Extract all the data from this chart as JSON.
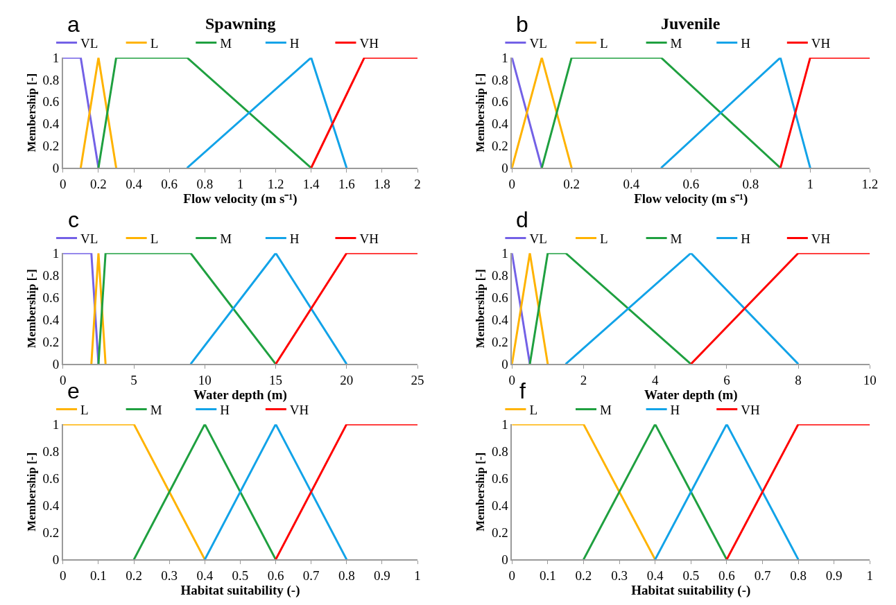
{
  "chart_data": [
    {
      "type": "line",
      "title": "Spawning",
      "annotations": [
        "a"
      ],
      "xlabel": "Flow velocity (m s⁻¹)",
      "ylabel": "Membership [-]",
      "xlim": [
        0,
        2
      ],
      "xticks": [
        0,
        0.2,
        0.4,
        0.6,
        0.8,
        1,
        1.2,
        1.4,
        1.6,
        1.8,
        2
      ],
      "ylim": [
        0,
        1
      ],
      "yticks": [
        0,
        0.2,
        0.4,
        0.6,
        0.8,
        1
      ],
      "legend": "top",
      "marker": "none",
      "series": [
        {
          "name": "VL",
          "color": "#7361e6",
          "x": [
            0,
            0.1,
            0.2
          ],
          "values": [
            1,
            1,
            0
          ]
        },
        {
          "name": "L",
          "color": "#ffb300",
          "x": [
            0.1,
            0.2,
            0.3
          ],
          "values": [
            0,
            1,
            0
          ]
        },
        {
          "name": "M",
          "color": "#1fa040",
          "x": [
            0.2,
            0.3,
            0.7,
            1.4
          ],
          "values": [
            0,
            1,
            1,
            0
          ]
        },
        {
          "name": "H",
          "color": "#12a3e8",
          "x": [
            0.7,
            1.4,
            1.6
          ],
          "values": [
            0,
            1,
            0
          ]
        },
        {
          "name": "VH",
          "color": "#ff0000",
          "x": [
            1.4,
            1.7,
            2
          ],
          "values": [
            0,
            1,
            1
          ]
        }
      ]
    },
    {
      "type": "line",
      "title": "Juvenile",
      "annotations": [
        "b"
      ],
      "xlabel": "Flow velocity (m s⁻¹)",
      "ylabel": "Membership [-]",
      "xlim": [
        0,
        1.2
      ],
      "xticks": [
        0,
        0.2,
        0.4,
        0.6,
        0.8,
        1,
        1.2
      ],
      "ylim": [
        0,
        1
      ],
      "yticks": [
        0,
        0.2,
        0.4,
        0.6,
        0.8,
        1
      ],
      "legend": "top",
      "marker": "none",
      "series": [
        {
          "name": "VL",
          "color": "#7361e6",
          "x": [
            0,
            0.1
          ],
          "values": [
            1,
            0
          ]
        },
        {
          "name": "L",
          "color": "#ffb300",
          "x": [
            0,
            0.1,
            0.2
          ],
          "values": [
            0,
            1,
            0
          ]
        },
        {
          "name": "M",
          "color": "#1fa040",
          "x": [
            0.1,
            0.2,
            0.5,
            0.9
          ],
          "values": [
            0,
            1,
            1,
            0
          ]
        },
        {
          "name": "H",
          "color": "#12a3e8",
          "x": [
            0.5,
            0.9,
            1
          ],
          "values": [
            0,
            1,
            0
          ]
        },
        {
          "name": "VH",
          "color": "#ff0000",
          "x": [
            0.9,
            1,
            1.2
          ],
          "values": [
            0,
            1,
            1
          ]
        }
      ]
    },
    {
      "type": "line",
      "annotations": [
        "c"
      ],
      "xlabel": "Water depth (m)",
      "ylabel": "Membership [-]",
      "xlim": [
        0,
        25
      ],
      "xticks": [
        0,
        5,
        10,
        15,
        20,
        25
      ],
      "ylim": [
        0,
        1
      ],
      "yticks": [
        0,
        0.2,
        0.4,
        0.6,
        0.8,
        1
      ],
      "legend": "top",
      "marker": "none",
      "series": [
        {
          "name": "VL",
          "color": "#7361e6",
          "x": [
            0,
            2,
            2.5
          ],
          "values": [
            1,
            1,
            0
          ]
        },
        {
          "name": "L",
          "color": "#ffb300",
          "x": [
            2,
            2.5,
            3
          ],
          "values": [
            0,
            1,
            0
          ]
        },
        {
          "name": "M",
          "color": "#1fa040",
          "x": [
            2.5,
            3,
            9,
            15
          ],
          "values": [
            0,
            1,
            1,
            0
          ]
        },
        {
          "name": "H",
          "color": "#12a3e8",
          "x": [
            9,
            15,
            20
          ],
          "values": [
            0,
            1,
            0
          ]
        },
        {
          "name": "VH",
          "color": "#ff0000",
          "x": [
            15,
            20,
            25
          ],
          "values": [
            0,
            1,
            1
          ]
        }
      ]
    },
    {
      "type": "line",
      "annotations": [
        "d"
      ],
      "xlabel": "Water depth (m)",
      "ylabel": "Membership [-]",
      "xlim": [
        0,
        10
      ],
      "xticks": [
        0,
        2,
        4,
        6,
        8,
        10
      ],
      "ylim": [
        0,
        1
      ],
      "yticks": [
        0,
        0.2,
        0.4,
        0.6,
        0.8,
        1
      ],
      "legend": "top",
      "marker": "none",
      "series": [
        {
          "name": "VL",
          "color": "#7361e6",
          "x": [
            0,
            0.5
          ],
          "values": [
            1,
            0
          ]
        },
        {
          "name": "L",
          "color": "#ffb300",
          "x": [
            0,
            0.5,
            1
          ],
          "values": [
            0,
            1,
            0
          ]
        },
        {
          "name": "M",
          "color": "#1fa040",
          "x": [
            0.5,
            1,
            1.5,
            5
          ],
          "values": [
            0,
            1,
            1,
            0
          ]
        },
        {
          "name": "H",
          "color": "#12a3e8",
          "x": [
            1.5,
            5,
            8
          ],
          "values": [
            0,
            1,
            0
          ]
        },
        {
          "name": "VH",
          "color": "#ff0000",
          "x": [
            5,
            8,
            10
          ],
          "values": [
            0,
            1,
            1
          ]
        }
      ]
    },
    {
      "type": "line",
      "annotations": [
        "e"
      ],
      "xlabel": "Habitat suitability (-)",
      "ylabel": "Membership [-]",
      "xlim": [
        0,
        1
      ],
      "xticks": [
        0,
        0.1,
        0.2,
        0.3,
        0.4,
        0.5,
        0.6,
        0.7,
        0.8,
        0.9,
        1
      ],
      "ylim": [
        0,
        1
      ],
      "yticks": [
        0,
        0.2,
        0.4,
        0.6,
        0.8,
        1
      ],
      "legend": "top",
      "marker": "none",
      "series": [
        {
          "name": "L",
          "color": "#ffb300",
          "x": [
            0,
            0.2,
            0.4
          ],
          "values": [
            1,
            1,
            0
          ]
        },
        {
          "name": "M",
          "color": "#1fa040",
          "x": [
            0.2,
            0.4,
            0.6
          ],
          "values": [
            0,
            1,
            0
          ]
        },
        {
          "name": "H",
          "color": "#12a3e8",
          "x": [
            0.4,
            0.6,
            0.8
          ],
          "values": [
            0,
            1,
            0
          ]
        },
        {
          "name": "VH",
          "color": "#ff0000",
          "x": [
            0.6,
            0.8,
            1
          ],
          "values": [
            0,
            1,
            1
          ]
        }
      ]
    },
    {
      "type": "line",
      "annotations": [
        "f"
      ],
      "xlabel": "Habitat suitability (-)",
      "ylabel": "Membership [-]",
      "xlim": [
        0,
        1
      ],
      "xticks": [
        0,
        0.1,
        0.2,
        0.3,
        0.4,
        0.5,
        0.6,
        0.7,
        0.8,
        0.9,
        1
      ],
      "ylim": [
        0,
        1
      ],
      "yticks": [
        0,
        0.2,
        0.4,
        0.6,
        0.8,
        1
      ],
      "legend": "top",
      "marker": "none",
      "series": [
        {
          "name": "L",
          "color": "#ffb300",
          "x": [
            0,
            0.2,
            0.4
          ],
          "values": [
            1,
            1,
            0
          ]
        },
        {
          "name": "M",
          "color": "#1fa040",
          "x": [
            0.2,
            0.4,
            0.6
          ],
          "values": [
            0,
            1,
            0
          ]
        },
        {
          "name": "H",
          "color": "#12a3e8",
          "x": [
            0.4,
            0.6,
            0.8
          ],
          "values": [
            0,
            1,
            0
          ]
        },
        {
          "name": "VH",
          "color": "#ff0000",
          "x": [
            0.6,
            0.8,
            1
          ],
          "values": [
            0,
            1,
            1
          ]
        }
      ]
    }
  ]
}
